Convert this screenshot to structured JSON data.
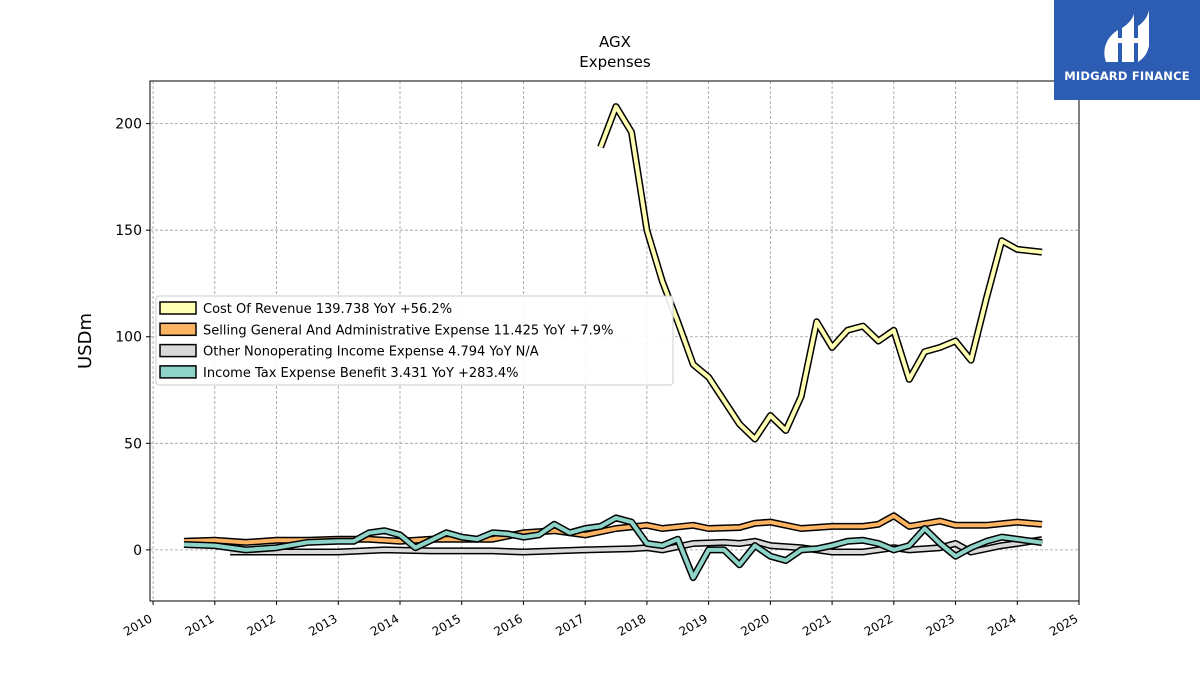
{
  "logo": {
    "text": "MIDGARD FINANCE",
    "icon": "midgard-logo-icon",
    "bg_color": "#2d5cb3"
  },
  "chart_data": {
    "type": "line",
    "title": "AGX",
    "subtitle": "Expenses",
    "xlabel": "",
    "ylabel": "USDm",
    "xlim": [
      2009.95,
      2025.0
    ],
    "ylim": [
      -24,
      220
    ],
    "x_ticks": [
      "2010",
      "2011",
      "2012",
      "2013",
      "2014",
      "2015",
      "2016",
      "2017",
      "2018",
      "2019",
      "2020",
      "2021",
      "2022",
      "2023",
      "2024",
      "2025"
    ],
    "y_ticks": [
      0,
      50,
      100,
      150,
      200
    ],
    "grid": true,
    "legend_position": "center-left",
    "series": [
      {
        "name": "Cost Of Revenue  139.738 YoY +56.2%",
        "color": "#ffffb3",
        "points": [
          [
            2017.25,
            189
          ],
          [
            2017.5,
            208
          ],
          [
            2017.75,
            196
          ],
          [
            2018.0,
            150
          ],
          [
            2018.25,
            126
          ],
          [
            2018.5,
            107
          ],
          [
            2018.75,
            87
          ],
          [
            2019.0,
            81
          ],
          [
            2019.25,
            70
          ],
          [
            2019.5,
            59
          ],
          [
            2019.75,
            52
          ],
          [
            2020.0,
            63
          ],
          [
            2020.25,
            56
          ],
          [
            2020.5,
            72
          ],
          [
            2020.75,
            107
          ],
          [
            2021.0,
            95
          ],
          [
            2021.25,
            103
          ],
          [
            2021.5,
            105
          ],
          [
            2021.75,
            98
          ],
          [
            2022.0,
            103
          ],
          [
            2022.25,
            80
          ],
          [
            2022.5,
            93
          ],
          [
            2022.75,
            95
          ],
          [
            2023.0,
            98
          ],
          [
            2023.25,
            89
          ],
          [
            2023.5,
            118
          ],
          [
            2023.75,
            145
          ],
          [
            2024.0,
            141
          ],
          [
            2024.4,
            139.7
          ]
        ]
      },
      {
        "name": "Selling General And Administrative Expense  11.425 YoY +7.9%",
        "color": "#fdb462",
        "points": [
          [
            2010.5,
            4
          ],
          [
            2011.0,
            4.5
          ],
          [
            2011.5,
            3.5
          ],
          [
            2012.0,
            4.5
          ],
          [
            2012.5,
            4.5
          ],
          [
            2013.0,
            5
          ],
          [
            2013.5,
            5
          ],
          [
            2014.0,
            4
          ],
          [
            2014.5,
            5
          ],
          [
            2015.0,
            5
          ],
          [
            2015.5,
            5
          ],
          [
            2016.0,
            8
          ],
          [
            2016.5,
            9
          ],
          [
            2017.0,
            7
          ],
          [
            2017.5,
            10
          ],
          [
            2018.0,
            11.5
          ],
          [
            2018.25,
            10
          ],
          [
            2018.75,
            11.5
          ],
          [
            2019.0,
            10
          ],
          [
            2019.5,
            10.5
          ],
          [
            2019.75,
            12.5
          ],
          [
            2020.0,
            13
          ],
          [
            2020.5,
            10
          ],
          [
            2021.0,
            11
          ],
          [
            2021.5,
            11
          ],
          [
            2021.75,
            12
          ],
          [
            2022.0,
            16
          ],
          [
            2022.25,
            11
          ],
          [
            2022.75,
            13.5
          ],
          [
            2023.0,
            11.5
          ],
          [
            2023.5,
            11.5
          ],
          [
            2024.0,
            13
          ],
          [
            2024.4,
            12
          ]
        ]
      },
      {
        "name": "Other Nonoperating Income Expense  4.794 YoY N/A",
        "color": "#d9d9d9",
        "points": [
          [
            2011.25,
            -1
          ],
          [
            2012.0,
            -1
          ],
          [
            2013.0,
            -1
          ],
          [
            2013.75,
            0
          ],
          [
            2014.5,
            -0.5
          ],
          [
            2015.5,
            -0.5
          ],
          [
            2016.0,
            -1
          ],
          [
            2017.0,
            0
          ],
          [
            2017.75,
            0.5
          ],
          [
            2018.0,
            1
          ],
          [
            2018.25,
            0
          ],
          [
            2018.75,
            3
          ],
          [
            2019.25,
            3.5
          ],
          [
            2019.5,
            3
          ],
          [
            2019.75,
            4
          ],
          [
            2020.0,
            2
          ],
          [
            2020.5,
            1
          ],
          [
            2021.0,
            -1
          ],
          [
            2021.5,
            -1
          ],
          [
            2022.0,
            1
          ],
          [
            2022.25,
            0
          ],
          [
            2022.75,
            1
          ],
          [
            2023.0,
            3
          ],
          [
            2023.25,
            -1
          ],
          [
            2023.75,
            2
          ],
          [
            2024.0,
            3
          ],
          [
            2024.4,
            4.8
          ]
        ]
      },
      {
        "name": "Income Tax Expense Benefit  3.431 YoY +283.4%",
        "color": "#8dd3c7",
        "points": [
          [
            2010.5,
            2.5
          ],
          [
            2011.0,
            2
          ],
          [
            2011.5,
            0
          ],
          [
            2012.0,
            1
          ],
          [
            2012.5,
            3.5
          ],
          [
            2013.0,
            4
          ],
          [
            2013.25,
            4
          ],
          [
            2013.5,
            8
          ],
          [
            2013.75,
            9
          ],
          [
            2014.0,
            7
          ],
          [
            2014.25,
            1
          ],
          [
            2014.5,
            4.5
          ],
          [
            2014.75,
            8
          ],
          [
            2015.0,
            6
          ],
          [
            2015.25,
            5
          ],
          [
            2015.5,
            8
          ],
          [
            2015.75,
            7.5
          ],
          [
            2016.0,
            6
          ],
          [
            2016.25,
            7
          ],
          [
            2016.5,
            12
          ],
          [
            2016.75,
            8
          ],
          [
            2017.0,
            10
          ],
          [
            2017.25,
            11
          ],
          [
            2017.5,
            15
          ],
          [
            2017.75,
            13
          ],
          [
            2018.0,
            3
          ],
          [
            2018.25,
            2
          ],
          [
            2018.5,
            5
          ],
          [
            2018.75,
            -13
          ],
          [
            2019.0,
            0
          ],
          [
            2019.25,
            0
          ],
          [
            2019.5,
            -7
          ],
          [
            2019.75,
            2
          ],
          [
            2020.0,
            -3
          ],
          [
            2020.25,
            -5
          ],
          [
            2020.5,
            0
          ],
          [
            2020.75,
            0.5
          ],
          [
            2021.0,
            2
          ],
          [
            2021.25,
            4
          ],
          [
            2021.5,
            4.5
          ],
          [
            2021.75,
            3
          ],
          [
            2022.0,
            0
          ],
          [
            2022.25,
            2
          ],
          [
            2022.5,
            10
          ],
          [
            2022.75,
            3
          ],
          [
            2023.0,
            -3
          ],
          [
            2023.25,
            1
          ],
          [
            2023.5,
            4
          ],
          [
            2023.75,
            6
          ],
          [
            2024.0,
            5
          ],
          [
            2024.4,
            3.4
          ]
        ]
      }
    ]
  }
}
